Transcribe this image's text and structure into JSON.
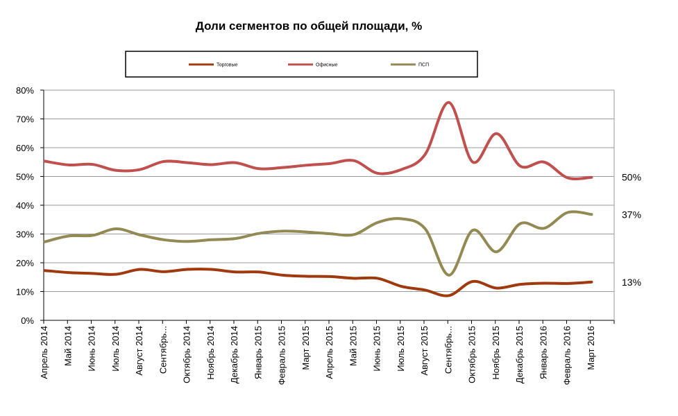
{
  "chart_data": {
    "type": "line",
    "title": "Доли сегментов по общей площади, %",
    "categories": [
      "Апрель 2014",
      "Май 2014",
      "Июнь 2014",
      "Июль 2014",
      "Август 2014",
      "Сентябрь...",
      "Октябрь 2014",
      "Ноябрь 2014",
      "Декабрь 2014",
      "Январь 2015",
      "Февраль 2015",
      "Март 2015",
      "Апрель 2015",
      "Май 2015",
      "Июнь 2015",
      "Июль 2015",
      "Август 2015",
      "Сентябрь...",
      "Октябрь 2015",
      "Ноябрь 2015",
      "Декабрь 2015",
      "Январь 2016",
      "Февраль 2016",
      "Март 2016"
    ],
    "y_ticks": [
      "0%",
      "10%",
      "20%",
      "30%",
      "40%",
      "50%",
      "60%",
      "70%",
      "80%"
    ],
    "ylim": [
      0,
      80
    ],
    "grid": true,
    "legend_position": "top",
    "series": [
      {
        "name": "Торговые",
        "color": "#a0390e",
        "values": [
          17.3,
          16.6,
          16.3,
          16.0,
          17.7,
          16.9,
          17.7,
          17.7,
          16.8,
          16.8,
          15.7,
          15.3,
          15.2,
          14.6,
          14.6,
          11.8,
          10.5,
          8.6,
          13.5,
          11.2,
          12.5,
          12.9,
          12.8,
          13.3
        ],
        "end_label": "13%"
      },
      {
        "name": "Офисные",
        "color": "#c0504d",
        "values": [
          55.3,
          54.0,
          54.2,
          52.1,
          52.4,
          55.2,
          54.8,
          54.1,
          54.8,
          52.7,
          53.1,
          53.9,
          54.5,
          55.5,
          51.1,
          52.4,
          57.7,
          75.7,
          55.0,
          64.9,
          53.6,
          55.0,
          49.5,
          49.7
        ],
        "end_label": "50%"
      },
      {
        "name": "ПСП",
        "color": "#938953",
        "values": [
          27.3,
          29.3,
          29.5,
          31.8,
          29.7,
          28.0,
          27.4,
          28.0,
          28.4,
          30.2,
          31.0,
          30.7,
          30.1,
          29.8,
          34.0,
          35.3,
          31.8,
          15.7,
          31.3,
          23.8,
          33.6,
          32.0,
          37.5,
          36.8
        ],
        "end_label": "37%"
      }
    ]
  }
}
